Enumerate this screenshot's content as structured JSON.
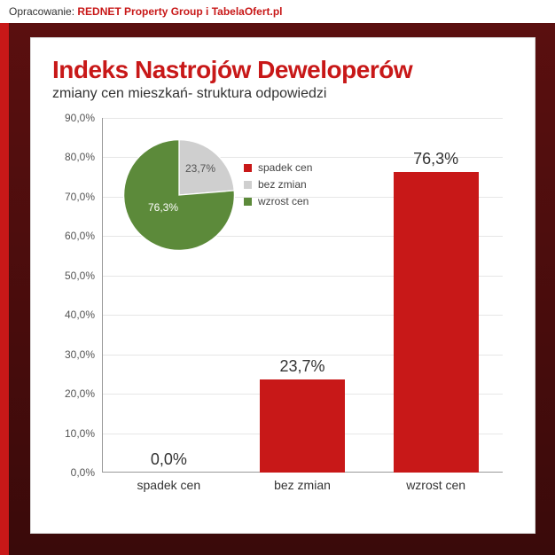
{
  "header": {
    "prefix": "Opracowanie: ",
    "brand": "REDNET Property Group i TabelaOfert.pl"
  },
  "title": "Indeks Nastrojów Deweloperów",
  "subtitle": "zmiany cen mieszkań- struktura odpowiedzi",
  "chart": {
    "type": "bar",
    "categories": [
      "spadek cen",
      "bez zmian",
      "wzrost cen"
    ],
    "values": [
      0.0,
      23.7,
      76.3
    ],
    "value_labels": [
      "0,0%",
      "23,7%",
      "76,3%"
    ],
    "bar_color": "#c81818",
    "ylim": [
      0,
      90
    ],
    "ytick_step": 10,
    "ytick_labels": [
      "0,0%",
      "10,0%",
      "20,0%",
      "30,0%",
      "40,0%",
      "50,0%",
      "60,0%",
      "70,0%",
      "80,0%",
      "90,0%"
    ],
    "grid_color": "#e6e6e6",
    "axis_color": "#999999",
    "label_fontsize": 14,
    "value_fontsize": 18
  },
  "pie": {
    "type": "pie",
    "slices": [
      {
        "label": "spadek cen",
        "value": 0.0,
        "color": "#c81818"
      },
      {
        "label": "bez zmian",
        "value": 23.7,
        "color": "#cfcfcf"
      },
      {
        "label": "wzrost cen",
        "value": 76.3,
        "color": "#5c8a3a"
      }
    ],
    "inner_labels": {
      "green": "76,3%",
      "grey": "23,7%"
    }
  },
  "legend": {
    "items": [
      {
        "label": "spadek cen",
        "color": "#c81818"
      },
      {
        "label": "bez zmian",
        "color": "#cfcfcf"
      },
      {
        "label": "wzrost cen",
        "color": "#5c8a3a"
      }
    ]
  },
  "colors": {
    "background_panel": "#ffffff",
    "title_color": "#c81818",
    "text_color": "#333333",
    "outer_bg_top": "#5a0f0f",
    "outer_bg_bottom": "#3a0a0a"
  }
}
